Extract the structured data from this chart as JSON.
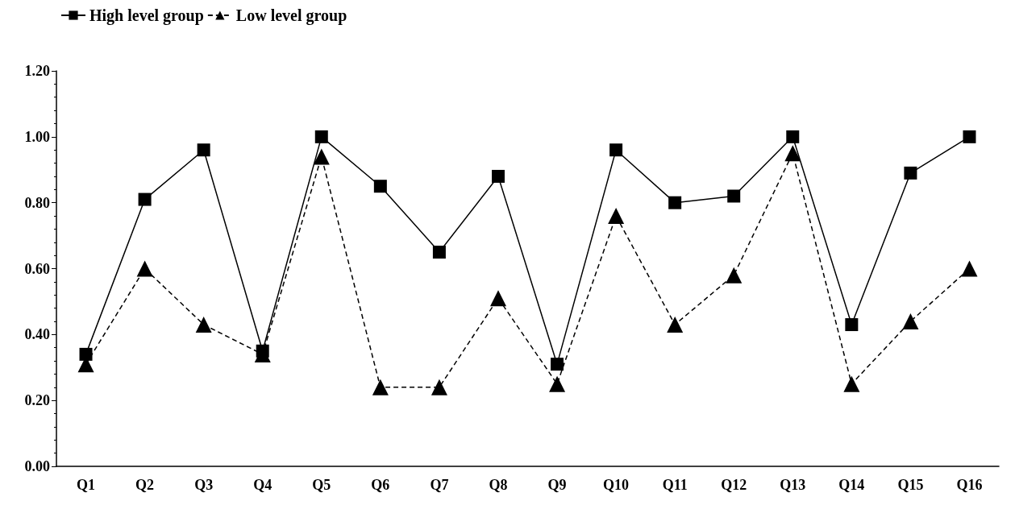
{
  "chart_data": {
    "type": "line",
    "categories": [
      "Q1",
      "Q2",
      "Q3",
      "Q4",
      "Q5",
      "Q6",
      "Q7",
      "Q8",
      "Q9",
      "Q10",
      "Q11",
      "Q12",
      "Q13",
      "Q14",
      "Q15",
      "Q16"
    ],
    "series": [
      {
        "name": "High level group",
        "color": "#000000",
        "marker": "square",
        "line_style": "solid",
        "values": [
          0.34,
          0.81,
          0.96,
          0.35,
          1.0,
          0.85,
          0.65,
          0.88,
          0.31,
          0.96,
          0.8,
          0.82,
          1.0,
          0.43,
          0.89,
          1.0
        ]
      },
      {
        "name": "Low level group",
        "color": "#000000",
        "marker": "triangle",
        "line_style": "dashed",
        "values": [
          0.31,
          0.6,
          0.43,
          0.34,
          0.94,
          0.24,
          0.24,
          0.51,
          0.25,
          0.76,
          0.43,
          0.58,
          0.95,
          0.25,
          0.44,
          0.6
        ]
      }
    ],
    "ylim": [
      0,
      1.2
    ],
    "yticks": [
      {
        "value": 0,
        "label": "0.00"
      },
      {
        "value": 0.2,
        "label": "0.20"
      },
      {
        "value": 0.4,
        "label": "0.40"
      },
      {
        "value": 0.6,
        "label": "0.60"
      },
      {
        "value": 0.8,
        "label": "0.80"
      },
      {
        "value": 1.0,
        "label": "1.00"
      },
      {
        "value": 1.2,
        "label": "1.20"
      }
    ],
    "legend": "top left"
  }
}
